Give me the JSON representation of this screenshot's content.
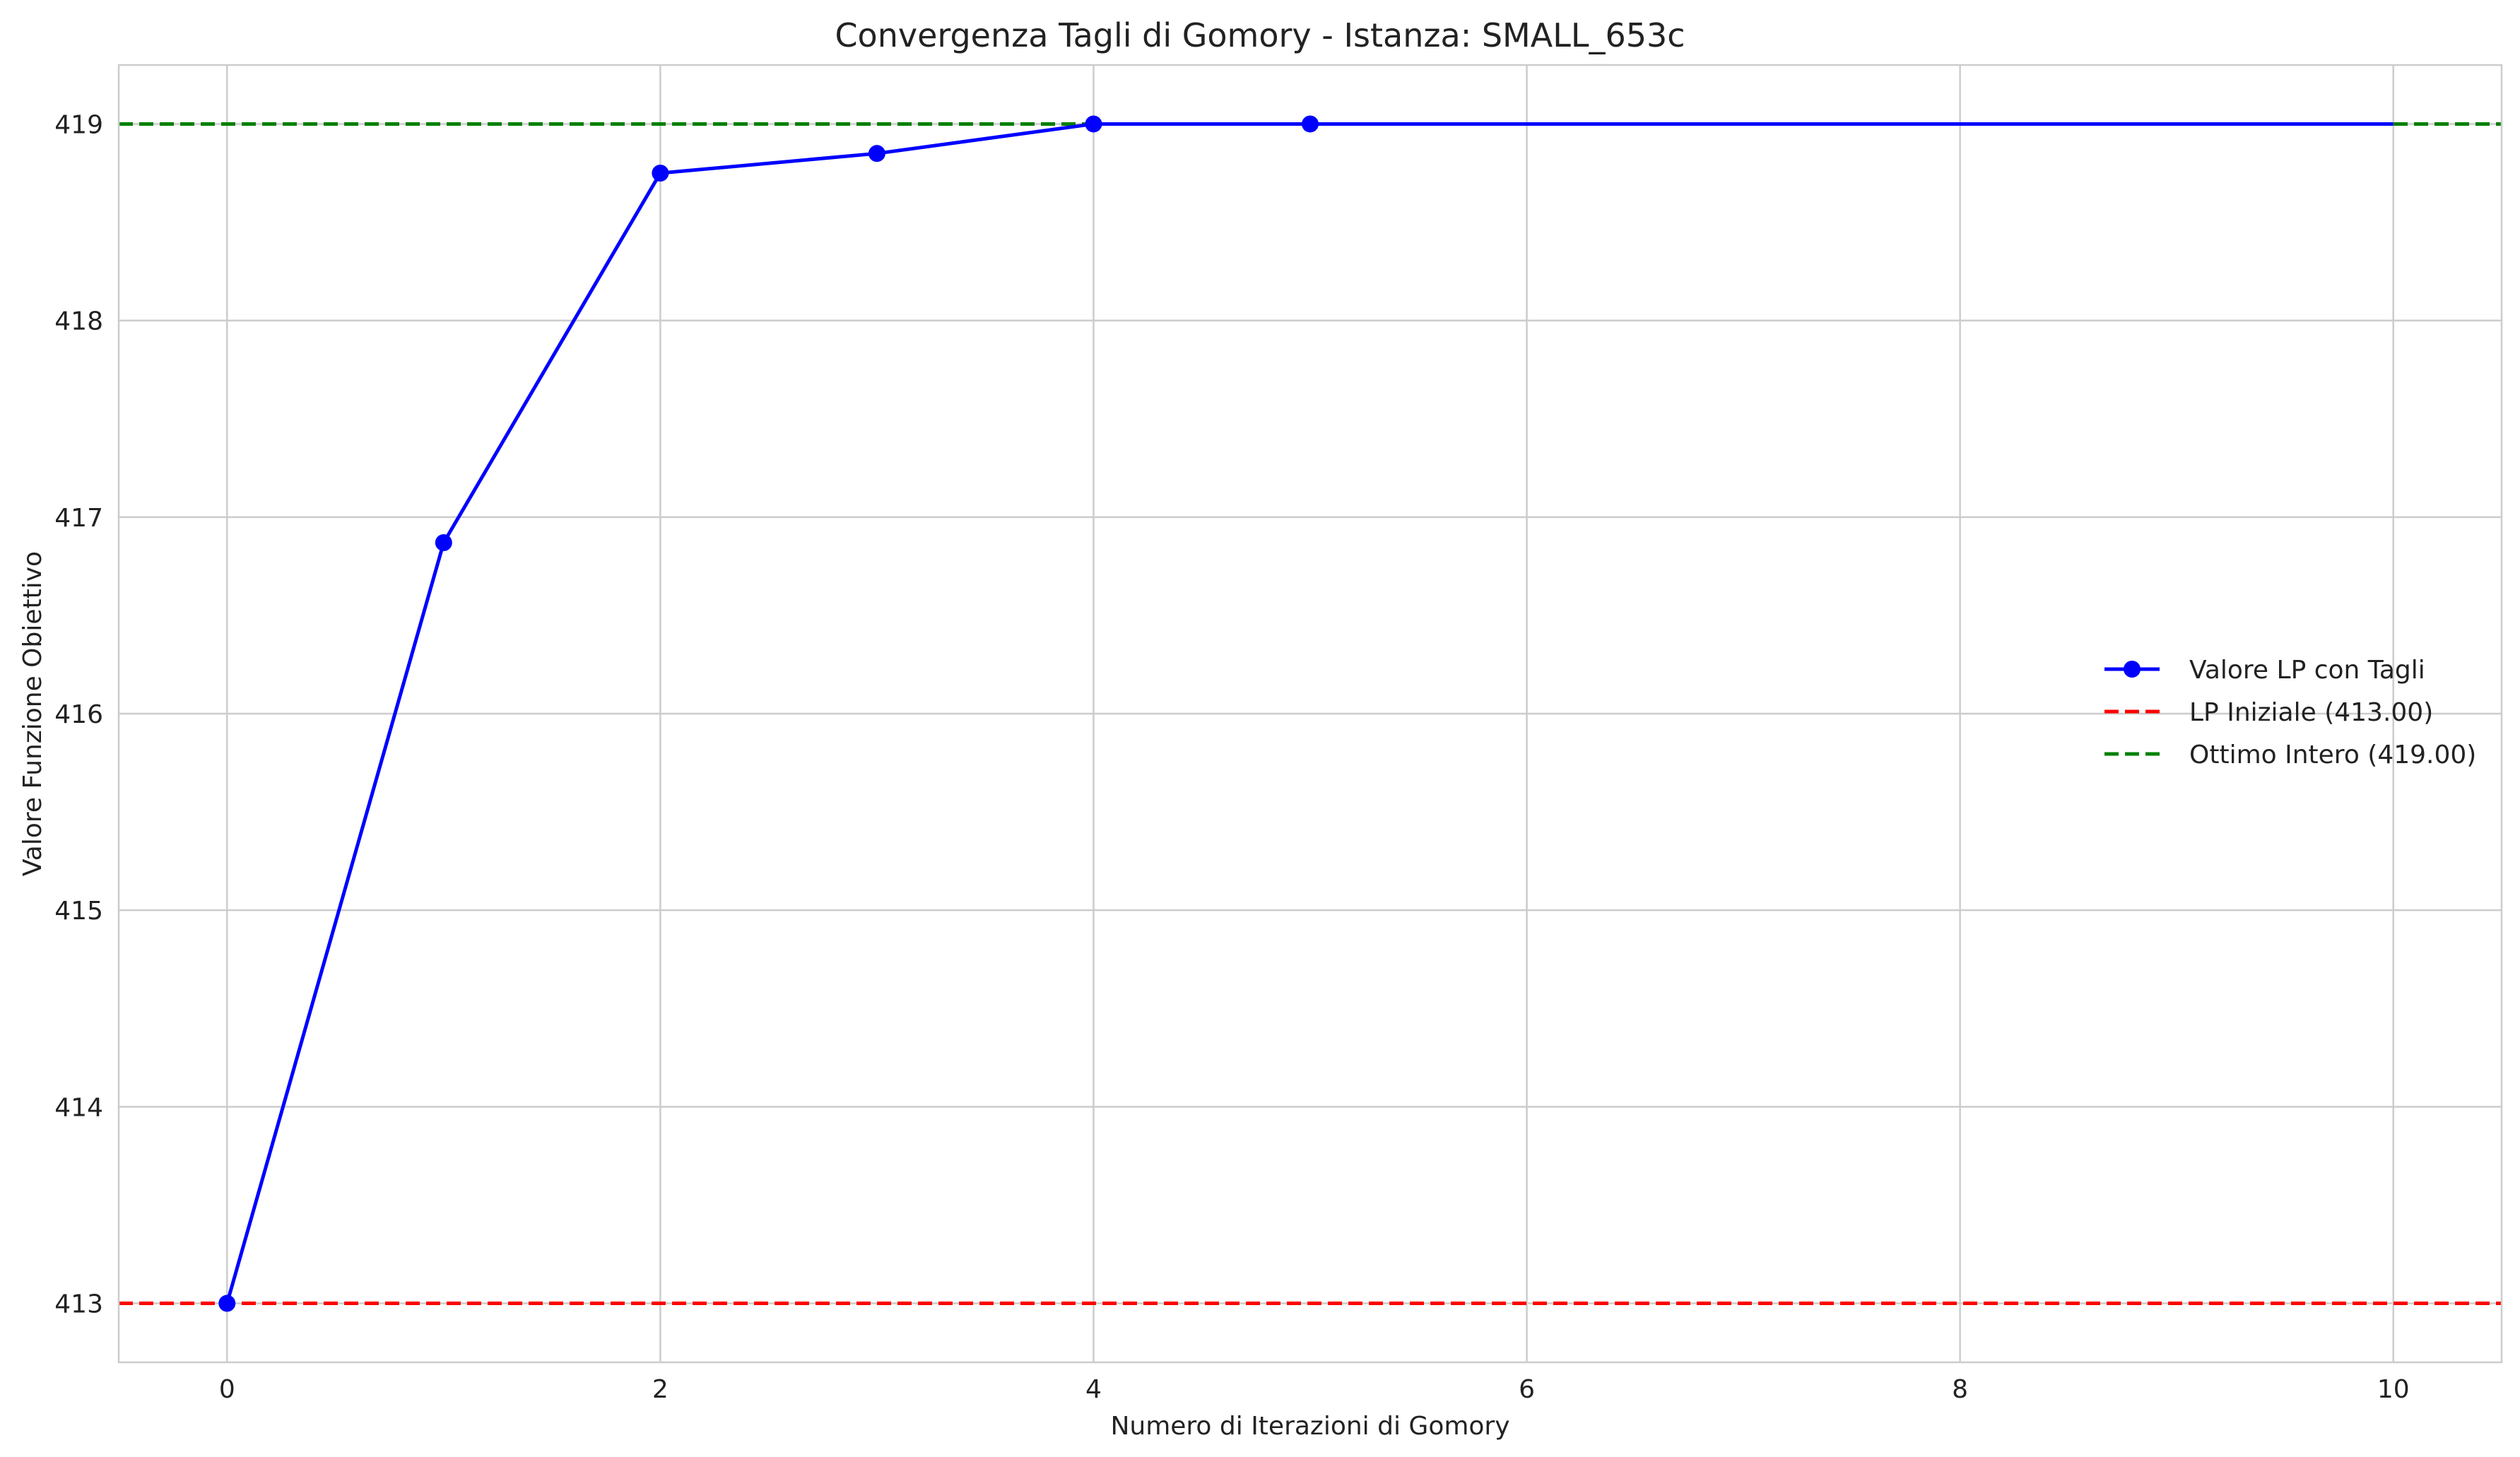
{
  "chart_data": {
    "type": "line",
    "title": "Convergenza Tagli di Gomory - Istanza: SMALL_653c",
    "xlabel": "Numero di Iterazioni di Gomory",
    "ylabel": "Valore Funzione Obiettivo",
    "xlim": [
      -0.5,
      10.5
    ],
    "ylim": [
      412.7,
      419.3
    ],
    "xticks": [
      0,
      2,
      4,
      6,
      8,
      10
    ],
    "yticks": [
      413,
      414,
      415,
      416,
      417,
      418,
      419
    ],
    "grid": true,
    "legend_position": "center-right",
    "series": [
      {
        "name": "Valore LP con Tagli",
        "color": "#0000ff",
        "style": "solid-with-markers",
        "x": [
          0,
          1,
          2,
          3,
          4,
          5,
          6,
          7,
          8,
          9,
          10
        ],
        "y": [
          413.0,
          416.87,
          418.75,
          418.85,
          419.0,
          419.0,
          419.0,
          419.0,
          419.0,
          419.0,
          419.0
        ],
        "marker_x": [
          0,
          1,
          2,
          3,
          4,
          5
        ]
      }
    ],
    "reference_lines": [
      {
        "name": "LP Iniziale (413.00)",
        "y": 413.0,
        "color": "#ff0000",
        "style": "dashed"
      },
      {
        "name": "Ottimo Intero (419.00)",
        "y": 419.0,
        "color": "#008000",
        "style": "dashed"
      }
    ]
  }
}
